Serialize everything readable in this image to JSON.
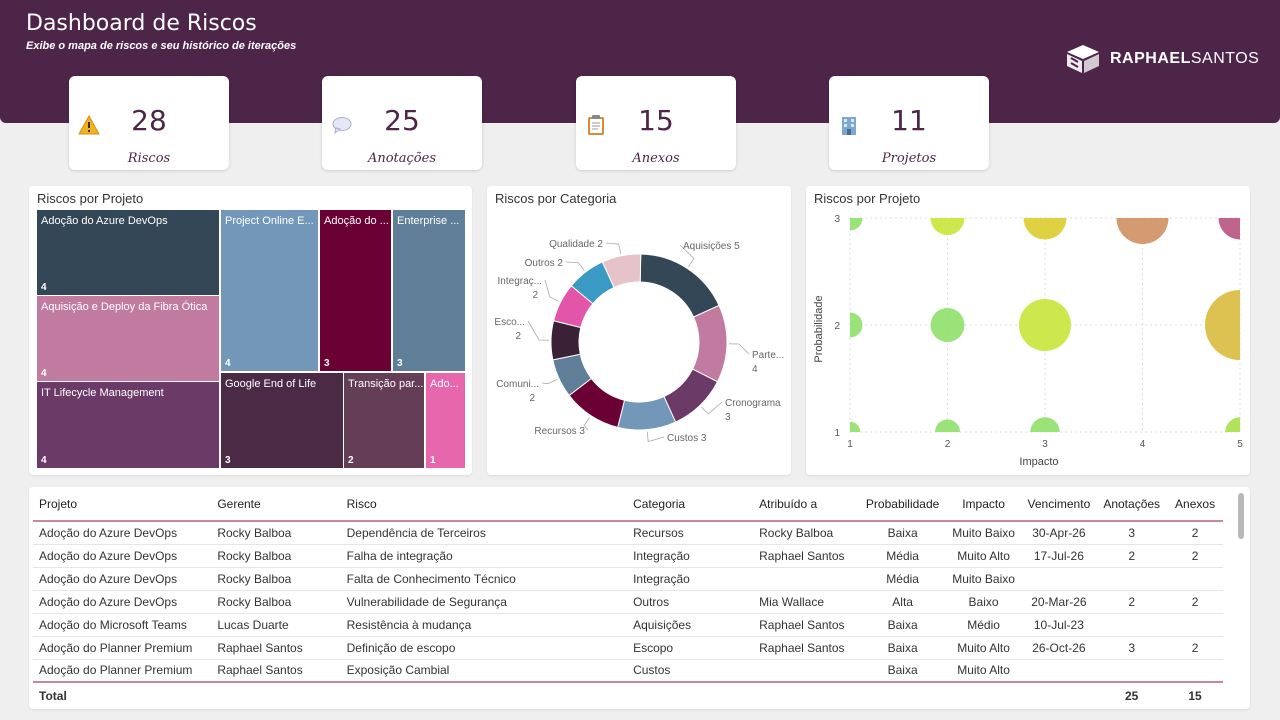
{
  "header": {
    "title": "Dashboard de Riscos",
    "subtitle": "Exibe o mapa de riscos e seu histórico de iterações",
    "logo_bold": "RAPHAEL",
    "logo_light": "SANTOS"
  },
  "kpis": [
    {
      "value": "28",
      "label": "Riscos",
      "icon": "warning-icon"
    },
    {
      "value": "25",
      "label": "Anotações",
      "icon": "speech-bubble-icon"
    },
    {
      "value": "15",
      "label": "Anexos",
      "icon": "clipboard-icon"
    },
    {
      "value": "11",
      "label": "Projetos",
      "icon": "building-icon"
    }
  ],
  "treemap": {
    "title": "Riscos por Projeto",
    "items": [
      {
        "label": "Adoção do Azure DevOps",
        "count": "4",
        "color": "#344757"
      },
      {
        "label": "Aquisição e Deploy da Fibra Ótica",
        "count": "4",
        "color": "#c27ba0"
      },
      {
        "label": "IT Lifecycle Management",
        "count": "4",
        "color": "#6b3a66"
      },
      {
        "label": "Project Online E...",
        "count": "4",
        "color": "#7297b8"
      },
      {
        "label": "Adoção do ...",
        "count": "3",
        "color": "#6b0035"
      },
      {
        "label": "Enterprise ...",
        "count": "3",
        "color": "#5f7f99"
      },
      {
        "label": "Google End of Life",
        "count": "3",
        "color": "#4a2a45"
      },
      {
        "label": "Transição par...",
        "count": "2",
        "color": "#643e57"
      },
      {
        "label": "Ado...",
        "count": "1",
        "color": "#e767ac"
      }
    ]
  },
  "donut": {
    "title": "Riscos por Categoria",
    "slices": [
      {
        "name": "Aquisições",
        "value": 5,
        "color": "#344757",
        "label": "Aquisições 5"
      },
      {
        "name": "Parte...",
        "value": 4,
        "color": "#c27ba0",
        "label": "Parte...",
        "label2": "4"
      },
      {
        "name": "Cronograma",
        "value": 3,
        "color": "#6b3a66",
        "label": "Cronograma",
        "label2": "3"
      },
      {
        "name": "Custos",
        "value": 3,
        "color": "#7297b8",
        "label": "Custos 3"
      },
      {
        "name": "Recursos",
        "value": 3,
        "color": "#6b0035",
        "label": "Recursos 3"
      },
      {
        "name": "Comuni...",
        "value": 2,
        "color": "#5f7f99",
        "label": "Comuni...",
        "label2": "2"
      },
      {
        "name": "Esco...",
        "value": 2,
        "color": "#3b2136",
        "label": "Esco...",
        "label2": "2"
      },
      {
        "name": "Integraç...",
        "value": 2,
        "color": "#e255a9",
        "label": "Integraç...",
        "label2": "2"
      },
      {
        "name": "Outros",
        "value": 2,
        "color": "#3a9ac4",
        "label": "Outros 2"
      },
      {
        "name": "Qualidade",
        "value": 2,
        "color": "#e6c3c8",
        "label": "Qualidade 2"
      }
    ]
  },
  "scatter": {
    "title": "Riscos por Projeto",
    "xlabel": "Impacto",
    "ylabel": "Probabilidade",
    "xticks": [
      "1",
      "2",
      "3",
      "4",
      "5"
    ],
    "yticks": [
      "1",
      "2",
      "3"
    ]
  },
  "chart_data": {
    "type": "scatter",
    "title": "Riscos por Projeto",
    "xlabel": "Impacto",
    "ylabel": "Probabilidade",
    "xlim": [
      1,
      5
    ],
    "ylim": [
      1,
      3
    ],
    "points": [
      {
        "x": 1,
        "y": 3,
        "size": 1,
        "color": "#8ee06a"
      },
      {
        "x": 2,
        "y": 3,
        "size": 2,
        "color": "#c8e63a"
      },
      {
        "x": 3,
        "y": 3,
        "size": 3,
        "color": "#dccd2e"
      },
      {
        "x": 4,
        "y": 3,
        "size": 4,
        "color": "#cf8f62"
      },
      {
        "x": 5,
        "y": 3,
        "size": 3,
        "color": "#b85380"
      },
      {
        "x": 1,
        "y": 2,
        "size": 1,
        "color": "#8ee06a"
      },
      {
        "x": 2,
        "y": 2,
        "size": 2,
        "color": "#8ee06a"
      },
      {
        "x": 3,
        "y": 2,
        "size": 4,
        "color": "#c8e63a"
      },
      {
        "x": 5,
        "y": 2,
        "size": 6,
        "color": "#d9bb3f"
      },
      {
        "x": 1,
        "y": 1,
        "size": 0.5,
        "color": "#8ee06a"
      },
      {
        "x": 2,
        "y": 1,
        "size": 1,
        "color": "#8ee06a"
      },
      {
        "x": 3,
        "y": 1,
        "size": 1.5,
        "color": "#8ee06a"
      },
      {
        "x": 5,
        "y": 1,
        "size": 1.5,
        "color": "#a7e048"
      }
    ]
  },
  "table": {
    "headers": [
      "Projeto",
      "Gerente",
      "Risco",
      "Categoria",
      "Atribuído a",
      "Probabilidade",
      "Impacto",
      "Vencimento",
      "Anotações",
      "Anexos"
    ],
    "rows": [
      [
        "Adoção do Azure DevOps",
        "Rocky Balboa",
        "Dependência de Terceiros",
        "Recursos",
        "Rocky Balboa",
        "Baixa",
        "Muito Baixo",
        "30-Apr-26",
        "3",
        "2"
      ],
      [
        "Adoção do Azure DevOps",
        "Rocky Balboa",
        "Falha de integração",
        "Integração",
        "Raphael Santos",
        "Média",
        "Muito Alto",
        "17-Jul-26",
        "2",
        "2"
      ],
      [
        "Adoção do Azure DevOps",
        "Rocky Balboa",
        "Falta de Conhecimento Técnico",
        "Integração",
        "",
        "Média",
        "Muito Baixo",
        "",
        "",
        ""
      ],
      [
        "Adoção do Azure DevOps",
        "Rocky Balboa",
        "Vulnerabilidade de Segurança",
        "Outros",
        "Mia Wallace",
        "Alta",
        "Baixo",
        "20-Mar-26",
        "2",
        "2"
      ],
      [
        "Adoção do Microsoft Teams",
        "Lucas Duarte",
        "Resistência à mudança",
        "Aquisições",
        "Raphael Santos",
        "Baixa",
        "Médio",
        "10-Jul-23",
        "",
        ""
      ],
      [
        "Adoção do Planner Premium",
        "Raphael Santos",
        "Definição de escopo",
        "Escopo",
        "Raphael Santos",
        "Baixa",
        "Muito Alto",
        "26-Oct-26",
        "3",
        "2"
      ],
      [
        "Adoção do Planner Premium",
        "Raphael Santos",
        "Exposição Cambial",
        "Custos",
        "",
        "Baixa",
        "Muito Alto",
        "",
        "",
        ""
      ]
    ],
    "total": {
      "label": "Total",
      "anotacoes": "25",
      "anexos": "15"
    }
  }
}
